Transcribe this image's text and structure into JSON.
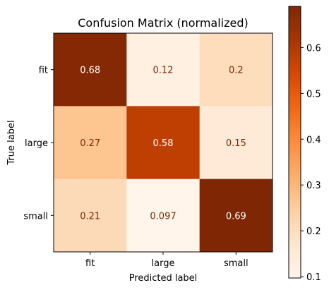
{
  "chart_data": {
    "type": "heatmap",
    "title": "Confusion Matrix (normalized)",
    "xlabel": "Predicted label",
    "ylabel": "True label",
    "x_categories": [
      "fit",
      "large",
      "small"
    ],
    "y_categories": [
      "fit",
      "large",
      "small"
    ],
    "values": [
      [
        0.68,
        0.12,
        0.2
      ],
      [
        0.27,
        0.58,
        0.15
      ],
      [
        0.21,
        0.097,
        0.69
      ]
    ],
    "colormap": "Oranges",
    "colorbar": {
      "min": 0.097,
      "max": 0.69,
      "ticks": [
        0.1,
        0.2,
        0.3,
        0.4,
        0.5,
        0.6
      ]
    },
    "colors": {
      "cell_text_light": "#ffffff",
      "cell_text_dark": "#7f2704"
    }
  }
}
